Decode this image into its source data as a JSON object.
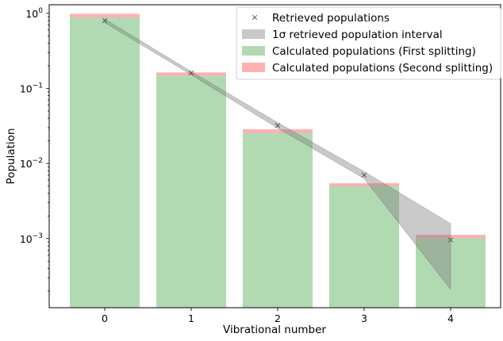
{
  "chart_data": {
    "type": "bar",
    "title": "",
    "xlabel": "Vibrational number",
    "ylabel": "Population",
    "yscale": "log",
    "ylim": [
      0.00012,
      1.3
    ],
    "grid": false,
    "legend_position": "top-right",
    "categories": [
      "0",
      "1",
      "2",
      "3",
      "4"
    ],
    "x_ticks": [
      "0",
      "1",
      "2",
      "3",
      "4"
    ],
    "y_ticks": [
      {
        "value": 1,
        "base": "10",
        "exp": "0"
      },
      {
        "value": 0.1,
        "base": "10",
        "exp": "−1"
      },
      {
        "value": 0.01,
        "base": "10",
        "exp": "−2"
      },
      {
        "value": 0.001,
        "base": "10",
        "exp": "−3"
      }
    ],
    "series": [
      {
        "name": "Calculated populations (Second splitting)",
        "kind": "bar",
        "color": "#ffb0b0",
        "values": [
          0.985,
          0.163,
          0.0285,
          0.00545,
          0.00112
        ]
      },
      {
        "name": "Calculated populations (First splitting)",
        "kind": "bar",
        "color": "#b2dab2",
        "values": [
          0.88,
          0.148,
          0.0255,
          0.00495,
          0.00101
        ]
      },
      {
        "name": "1σ retrieved population interval",
        "kind": "band",
        "color": "#7f7f7f",
        "x": [
          0,
          1,
          2,
          3,
          4
        ],
        "upper": [
          0.84,
          0.168,
          0.035,
          0.0078,
          0.00158
        ],
        "lower": [
          0.75,
          0.152,
          0.0295,
          0.0063,
          0.00021
        ]
      },
      {
        "name": "Retrieved populations",
        "kind": "scatter",
        "marker": "x",
        "color": "#555555",
        "x": [
          0,
          1,
          2,
          3,
          4
        ],
        "values": [
          0.8,
          0.16,
          0.032,
          0.007,
          0.00096
        ]
      }
    ],
    "legend": [
      {
        "label": "Retrieved populations",
        "symbol": "x",
        "color": "#555555"
      },
      {
        "label": "1σ retrieved population interval",
        "symbol": "patch",
        "color": "#c8c8c8"
      },
      {
        "label": "Calculated populations (First splitting)",
        "symbol": "patch",
        "color": "#b2dab2"
      },
      {
        "label": "Calculated populations (Second splitting)",
        "symbol": "patch",
        "color": "#ffb0b0"
      }
    ]
  }
}
